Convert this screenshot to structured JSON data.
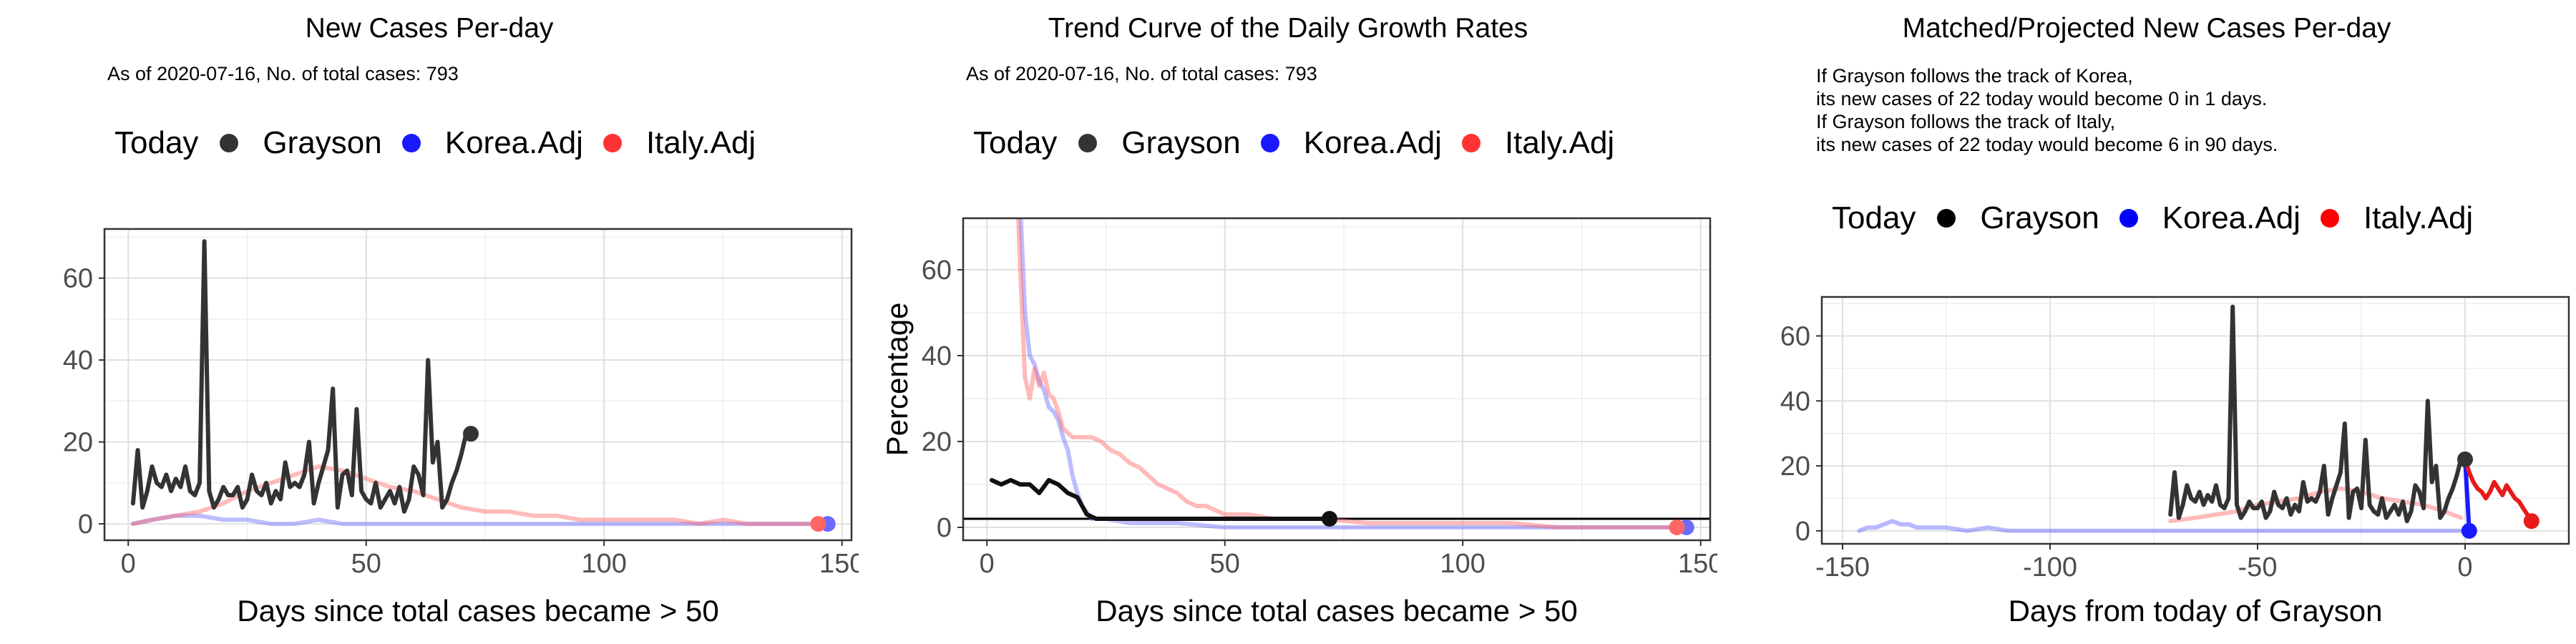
{
  "legend": {
    "title": "Today",
    "entries": [
      "Grayson",
      "Korea.Adj",
      "Italy.Adj"
    ],
    "colors": {
      "Grayson": "#333333",
      "Korea.Adj": "#1a1aff",
      "Italy.Adj": "#ff3333"
    }
  },
  "panels": [
    {
      "title": "New Cases Per-day",
      "subtitle": "As of 2020-07-16, No. of total cases: 793"
    },
    {
      "title": "Trend Curve of the Daily Growth Rates",
      "subtitle": "As of 2020-07-16, No. of total cases: 793"
    },
    {
      "title": "Matched/Projected New Cases Per-day",
      "note": [
        "If Grayson follows the track of Korea,",
        "its new cases of 22 today would become 0 in 1 days.",
        "If Grayson follows the track of Italy,",
        "its new cases of 22 today would become 6 in 90 days."
      ]
    }
  ],
  "chart_data": [
    {
      "type": "line",
      "title": "New Cases Per-day",
      "xlabel": "Days since total cases became > 50",
      "ylabel": "",
      "xlim": [
        -5,
        152
      ],
      "ylim": [
        -4,
        72
      ],
      "xticks": [
        0,
        50,
        100,
        150
      ],
      "yticks": [
        0,
        20,
        40,
        60
      ],
      "grid": true,
      "legend_position": "top",
      "series": [
        {
          "name": "Grayson",
          "color": "#333333",
          "opacity": 1,
          "x": [
            1,
            2,
            3,
            4,
            5,
            6,
            7,
            8,
            9,
            10,
            11,
            12,
            13,
            14,
            15,
            16,
            17,
            18,
            19,
            20,
            21,
            22,
            23,
            24,
            25,
            26,
            27,
            28,
            29,
            30,
            31,
            32,
            33,
            34,
            35,
            36,
            37,
            38,
            39,
            40,
            41,
            42,
            43,
            44,
            45,
            46,
            47,
            48,
            49,
            50,
            51,
            52,
            53,
            54,
            55,
            56,
            57,
            58,
            59,
            60,
            61,
            62,
            63,
            64,
            65,
            66,
            67,
            68,
            69,
            70,
            71,
            72
          ],
          "y": [
            5,
            18,
            4,
            8,
            14,
            10,
            9,
            12,
            8,
            11,
            9,
            14,
            8,
            7,
            10,
            69,
            8,
            4,
            6,
            9,
            7,
            7,
            9,
            4,
            6,
            12,
            8,
            7,
            10,
            5,
            8,
            6,
            15,
            9,
            10,
            9,
            12,
            20,
            5,
            10,
            14,
            18,
            33,
            4,
            12,
            13,
            7,
            28,
            8,
            6,
            5,
            10,
            4,
            6,
            8,
            5,
            9,
            3,
            6,
            14,
            12,
            7,
            40,
            15,
            20,
            4,
            6,
            10,
            13,
            17,
            22,
            22
          ],
          "endpoint": [
            72,
            22
          ]
        },
        {
          "name": "Korea.Adj",
          "color": "#6b6bff",
          "opacity": 0.45,
          "x": [
            1,
            5,
            10,
            15,
            20,
            25,
            30,
            35,
            40,
            45,
            50,
            55,
            60,
            65,
            70,
            75,
            80,
            85,
            90,
            95,
            100,
            105,
            110,
            115,
            120,
            125,
            130,
            135,
            140,
            145,
            147
          ],
          "y": [
            0,
            1,
            2,
            2,
            1,
            1,
            0,
            0,
            1,
            0,
            0,
            0,
            0,
            0,
            0,
            0,
            0,
            0,
            0,
            0,
            0,
            0,
            0,
            0,
            0,
            0,
            0,
            0,
            0,
            0,
            0
          ],
          "endpoint": [
            147,
            0
          ]
        },
        {
          "name": "Italy.Adj",
          "color": "#ff6666",
          "opacity": 0.45,
          "x": [
            1,
            5,
            10,
            15,
            20,
            25,
            30,
            35,
            40,
            45,
            50,
            55,
            60,
            65,
            70,
            75,
            80,
            85,
            90,
            95,
            100,
            105,
            110,
            115,
            120,
            125,
            130,
            135,
            140,
            145
          ],
          "y": [
            0,
            1,
            2,
            3,
            5,
            8,
            10,
            12,
            14,
            13,
            11,
            9,
            8,
            6,
            4,
            3,
            3,
            2,
            2,
            1,
            1,
            1,
            1,
            1,
            0,
            1,
            0,
            0,
            0,
            0
          ],
          "endpoint": [
            145,
            0
          ]
        }
      ]
    },
    {
      "type": "line",
      "title": "Trend Curve of the Daily Growth Rates",
      "xlabel": "Days since total cases became > 50",
      "ylabel": "Percentage",
      "xlim": [
        -5,
        152
      ],
      "ylim": [
        -3,
        72
      ],
      "xticks": [
        0,
        50,
        100,
        150
      ],
      "yticks": [
        0,
        20,
        40,
        60
      ],
      "grid": true,
      "legend_position": "top",
      "reference_line": 2,
      "series": [
        {
          "name": "Grayson",
          "color": "#111111",
          "opacity": 1,
          "x": [
            1,
            3,
            5,
            7,
            9,
            11,
            13,
            15,
            17,
            19,
            21,
            23,
            25,
            30,
            35,
            40,
            45,
            50,
            55,
            60,
            65,
            70,
            72
          ],
          "y": [
            11,
            10,
            11,
            10,
            10,
            8,
            11,
            10,
            8,
            7,
            3,
            2,
            2,
            2,
            2,
            2,
            2,
            2,
            2,
            2,
            2,
            2,
            2
          ],
          "endpoint": [
            72,
            2
          ]
        },
        {
          "name": "Korea.Adj",
          "color": "#6b6bff",
          "opacity": 0.45,
          "x": [
            6,
            7,
            8,
            9,
            10,
            11,
            12,
            13,
            14,
            15,
            16,
            17,
            18,
            19,
            20,
            22,
            25,
            30,
            35,
            40,
            50,
            60,
            70,
            80,
            100,
            120,
            140,
            147
          ],
          "y": [
            90,
            75,
            50,
            40,
            38,
            34,
            32,
            28,
            27,
            25,
            21,
            18,
            12,
            8,
            5,
            2,
            2,
            1,
            1,
            1,
            0,
            0,
            0,
            0,
            0,
            0,
            0,
            0
          ],
          "endpoint": [
            147,
            0
          ]
        },
        {
          "name": "Italy.Adj",
          "color": "#ff6666",
          "opacity": 0.45,
          "x": [
            6,
            7,
            8,
            9,
            10,
            11,
            12,
            13,
            14,
            15,
            16,
            18,
            20,
            22,
            24,
            26,
            28,
            30,
            32,
            34,
            36,
            38,
            40,
            42,
            44,
            46,
            48,
            50,
            55,
            60,
            70,
            80,
            90,
            100,
            110,
            120,
            130,
            140,
            145
          ],
          "y": [
            90,
            60,
            35,
            30,
            37,
            33,
            36,
            31,
            30,
            27,
            23,
            21,
            21,
            21,
            20,
            18,
            17,
            15,
            14,
            12,
            10,
            9,
            8,
            6,
            5,
            5,
            4,
            3,
            3,
            2,
            2,
            1,
            1,
            1,
            1,
            0,
            0,
            0,
            0
          ],
          "endpoint": [
            145,
            0
          ]
        }
      ]
    },
    {
      "type": "line",
      "title": "Matched/Projected New Cases Per-day",
      "xlabel": "Days from today of Grayson",
      "ylabel": "",
      "xlim": [
        -155,
        25
      ],
      "ylim": [
        -4,
        72
      ],
      "xticks": [
        -150,
        -100,
        -50,
        0
      ],
      "yticks": [
        0,
        20,
        40,
        60
      ],
      "grid": true,
      "legend_position": "top",
      "series": [
        {
          "name": "Grayson",
          "color": "#333333",
          "opacity": 1,
          "x": [
            -71,
            -70,
            -69,
            -68,
            -67,
            -66,
            -65,
            -64,
            -63,
            -62,
            -61,
            -60,
            -59,
            -58,
            -57,
            -56,
            -55,
            -54,
            -53,
            -52,
            -51,
            -50,
            -49,
            -48,
            -47,
            -46,
            -45,
            -44,
            -43,
            -42,
            -41,
            -40,
            -39,
            -38,
            -37,
            -36,
            -35,
            -34,
            -33,
            -32,
            -31,
            -30,
            -29,
            -28,
            -27,
            -26,
            -25,
            -24,
            -23,
            -22,
            -21,
            -20,
            -19,
            -18,
            -17,
            -16,
            -15,
            -14,
            -13,
            -12,
            -11,
            -10,
            -9,
            -8,
            -7,
            -6,
            -5,
            -4,
            -3,
            -2,
            -1,
            0
          ],
          "y": [
            5,
            18,
            4,
            8,
            14,
            10,
            9,
            12,
            8,
            11,
            9,
            14,
            8,
            7,
            10,
            69,
            8,
            4,
            6,
            9,
            7,
            7,
            9,
            4,
            6,
            12,
            8,
            7,
            10,
            5,
            8,
            6,
            15,
            9,
            10,
            9,
            12,
            20,
            5,
            10,
            14,
            18,
            33,
            4,
            12,
            13,
            7,
            28,
            8,
            6,
            5,
            10,
            4,
            6,
            8,
            5,
            9,
            3,
            6,
            14,
            12,
            7,
            40,
            15,
            20,
            4,
            6,
            10,
            13,
            17,
            22,
            22
          ],
          "endpoint": [
            0,
            22
          ]
        },
        {
          "name": "Korea.Adj",
          "color": "#3333ff",
          "opacity": 0.35,
          "x": [
            -146,
            -144,
            -142,
            -140,
            -138,
            -136,
            -134,
            -132,
            -130,
            -125,
            -120,
            -115,
            -110,
            -100,
            -90,
            -80,
            -70,
            -60,
            -50,
            -40,
            -30,
            -20,
            -10,
            -1
          ],
          "y": [
            0,
            1,
            1,
            2,
            3,
            2,
            2,
            1,
            1,
            1,
            0,
            1,
            0,
            0,
            0,
            0,
            0,
            0,
            0,
            0,
            0,
            0,
            0,
            0
          ]
        },
        {
          "name": "Korea.Adj projected",
          "color": "#1a1aff",
          "opacity": 1,
          "x": [
            0,
            1
          ],
          "y": [
            22,
            0
          ],
          "endpoint": [
            1,
            0
          ]
        },
        {
          "name": "Italy.Adj",
          "color": "#ff6666",
          "opacity": 0.45,
          "x": [
            -71,
            -65,
            -60,
            -55,
            -50,
            -45,
            -40,
            -35,
            -30,
            -25,
            -20,
            -15,
            -10,
            -5,
            -1
          ],
          "y": [
            3,
            4,
            5,
            6,
            8,
            9,
            10,
            12,
            13,
            12,
            10,
            9,
            8,
            6,
            4
          ]
        },
        {
          "name": "Italy.Adj projected",
          "color": "#e81a1a",
          "opacity": 1,
          "x": [
            0,
            1,
            2,
            3,
            4,
            5,
            6,
            7,
            8,
            9,
            10,
            11,
            12,
            13,
            14,
            15,
            16
          ],
          "y": [
            22,
            18,
            15,
            13,
            12,
            10,
            12,
            15,
            13,
            11,
            14,
            12,
            10,
            9,
            7,
            5,
            3
          ],
          "endpoint": [
            16,
            3
          ]
        }
      ]
    }
  ]
}
